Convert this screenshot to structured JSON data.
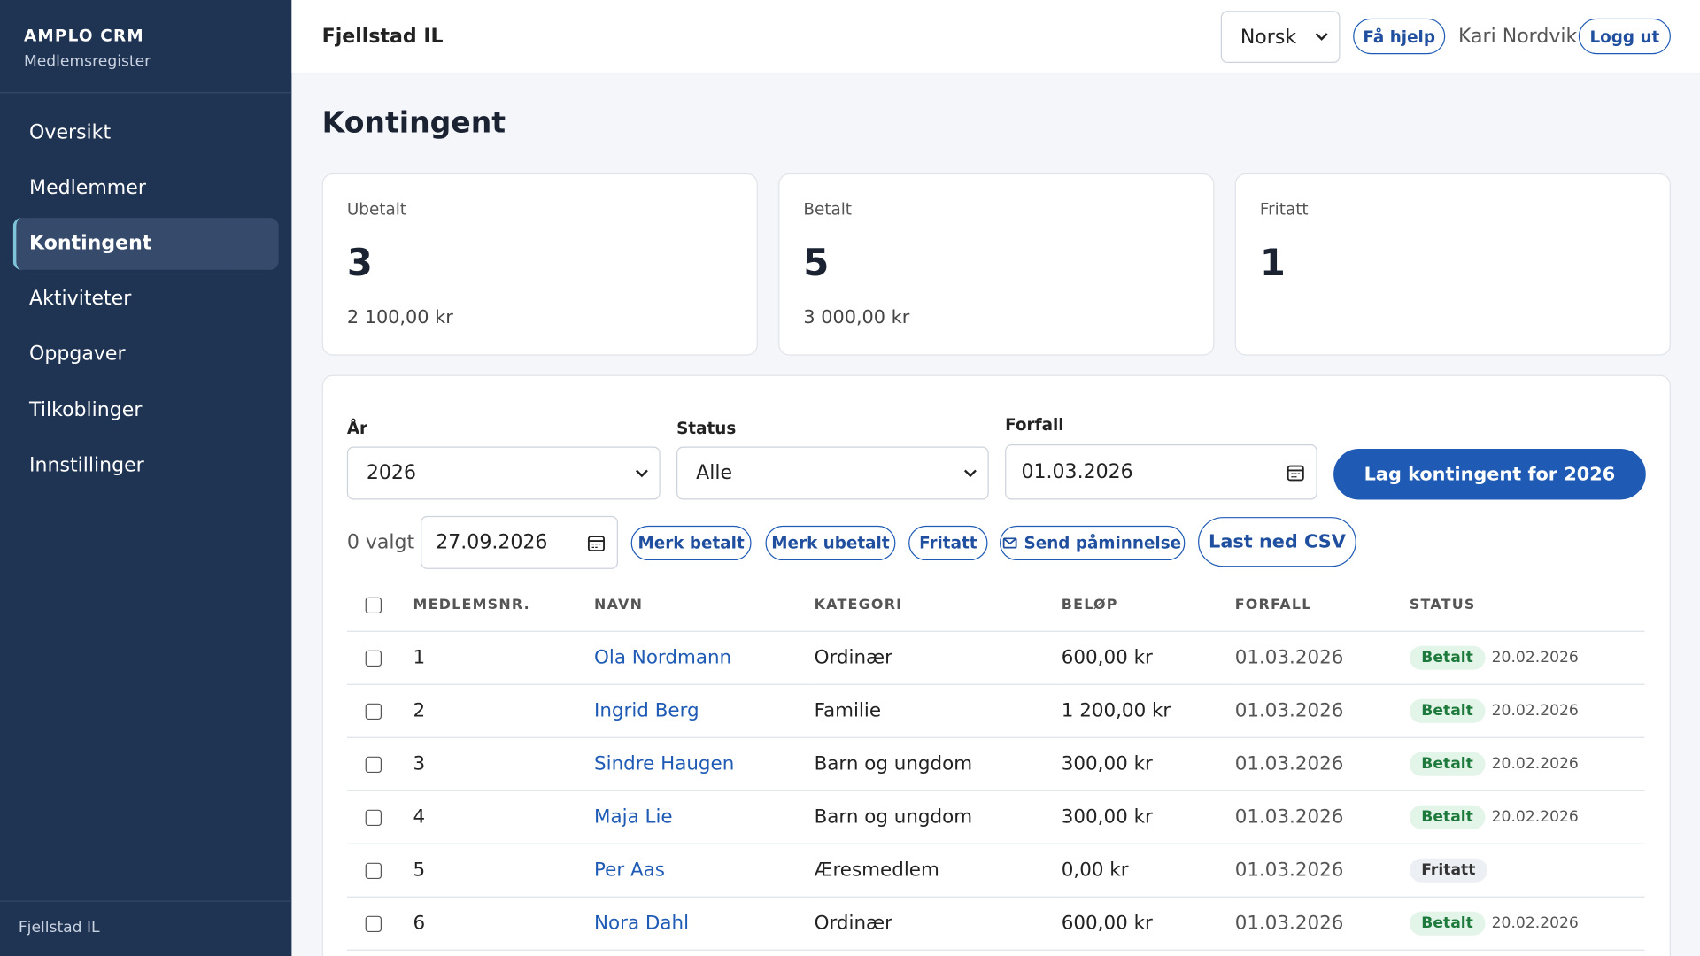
{
  "sidebar": {
    "brand": "AMPLO CRM",
    "subtitle": "Medlemsregister",
    "nav": [
      "Oversikt",
      "Medlemmer",
      "Kontingent",
      "Aktiviteter",
      "Oppgaver",
      "Tilkoblinger",
      "Innstillinger"
    ],
    "active": 2,
    "footer": "Fjellstad IL"
  },
  "header": {
    "org": "Fjellstad IL",
    "language": "Norsk",
    "help": "Få hjelp",
    "user": "Kari Nordvik",
    "logout": "Logg ut"
  },
  "page_title": "Kontingent",
  "stats": [
    {
      "label": "Ubetalt",
      "count": 3,
      "amount": "2 100,00 kr"
    },
    {
      "label": "Betalt",
      "count": 5,
      "amount": "3 000,00 kr"
    },
    {
      "label": "Fritatt",
      "count": 1
    }
  ],
  "filters": {
    "year_label": "År",
    "year": "2026",
    "status_label": "Status",
    "status": "Alle",
    "due_label": "Forfall",
    "due": "01.03.2026",
    "create_button": "Lag kontingent for 2026"
  },
  "bulk": {
    "selected": "0 valgt",
    "date": "27.09.2026",
    "actions": [
      "Merk betalt",
      "Merk ubetalt",
      "Fritatt",
      "Send påminnelse"
    ],
    "export": "Last ned CSV"
  },
  "table": {
    "columns": [
      "MEDLEMSNR.",
      "NAVN",
      "KATEGORI",
      "BELØP",
      "FORFALL",
      "STATUS"
    ],
    "rows": [
      [
        "1",
        "Ola Nordmann",
        "Ordinær",
        "600,00 kr",
        "01.03.2026",
        "Betalt",
        "20.02.2026"
      ],
      [
        "2",
        "Ingrid Berg",
        "Familie",
        "1 200,00 kr",
        "01.03.2026",
        "Betalt",
        "20.02.2026"
      ],
      [
        "3",
        "Sindre Haugen",
        "Barn og ungdom",
        "300,00 kr",
        "01.03.2026",
        "Betalt",
        "20.02.2026"
      ],
      [
        "4",
        "Maja Lie",
        "Barn og ungdom",
        "300,00 kr",
        "01.03.2026",
        "Betalt",
        "20.02.2026"
      ],
      [
        "5",
        "Per Aas",
        "Æresmedlem",
        "0,00 kr",
        "01.03.2026",
        "Fritatt",
        null
      ],
      [
        "6",
        "Nora Dahl",
        "Ordinær",
        "600,00 kr",
        "01.03.2026",
        "Betalt",
        "20.02.2026"
      ]
    ]
  }
}
